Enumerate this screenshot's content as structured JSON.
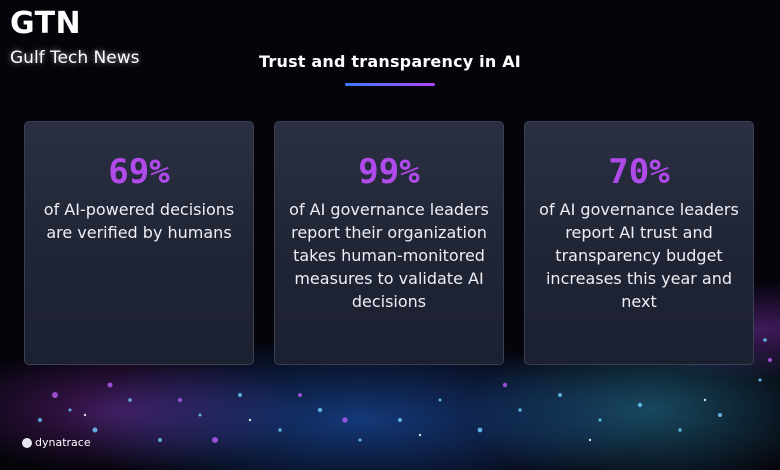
{
  "header": {
    "logo_mark": "GTN",
    "logo_subtitle": "Gulf Tech News",
    "title": "Trust and transparency in AI"
  },
  "cards": [
    {
      "value": "69%",
      "description": "of AI-powered decisions are verified by humans"
    },
    {
      "value": "99%",
      "description": "of AI governance leaders report their organization takes human-monitored measures to validate AI decisions"
    },
    {
      "value": "70%",
      "description": "of AI governance leaders report AI trust and transparency budget increases this year and next"
    }
  ],
  "footer": {
    "brand": "dynatrace"
  },
  "colors": {
    "accent": "#b04aea",
    "background": "#05040b",
    "card": "#242a3b"
  }
}
